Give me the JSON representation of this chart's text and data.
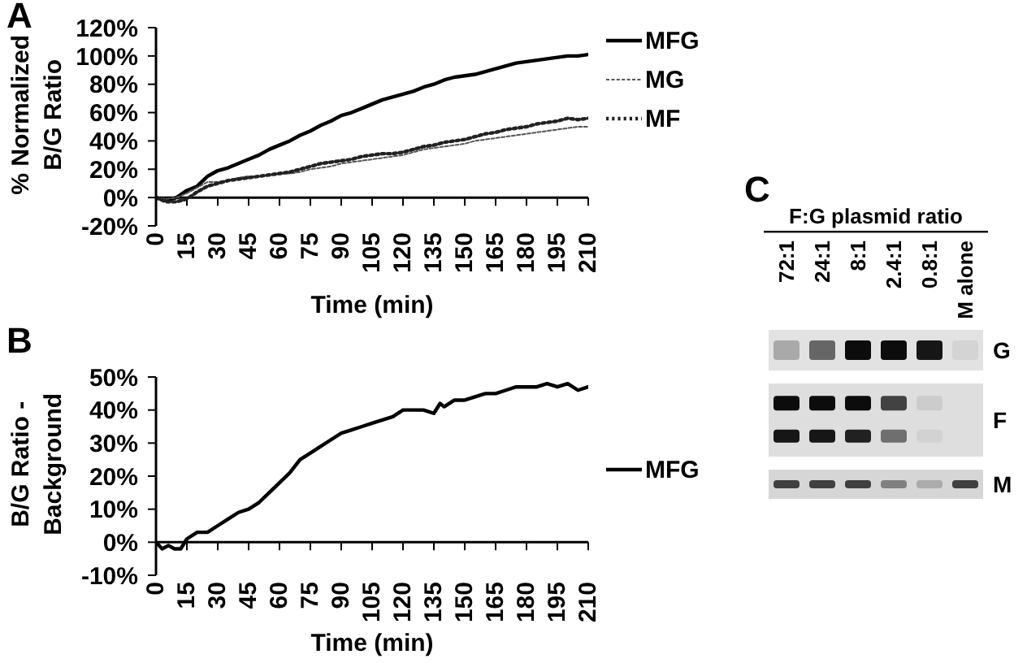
{
  "chart_data": [
    {
      "type": "line",
      "title": "A",
      "xlabel": "Time (min)",
      "ylabel": "% Normalized B/G Ratio",
      "x": [
        0,
        5,
        10,
        15,
        20,
        25,
        30,
        35,
        40,
        45,
        50,
        55,
        60,
        65,
        70,
        75,
        80,
        85,
        90,
        95,
        100,
        105,
        110,
        115,
        120,
        125,
        130,
        135,
        140,
        145,
        150,
        155,
        160,
        165,
        170,
        175,
        180,
        185,
        190,
        195,
        200,
        205,
        210
      ],
      "series": [
        {
          "name": "MFG",
          "color": "#000000",
          "line_style": "solid",
          "values": [
            0,
            -2,
            0,
            5,
            8,
            15,
            19,
            21,
            24,
            27,
            30,
            34,
            37,
            40,
            44,
            47,
            51,
            54,
            58,
            60,
            63,
            66,
            69,
            71,
            73,
            75,
            78,
            80,
            83,
            85,
            86,
            87,
            89,
            91,
            93,
            95,
            96,
            97,
            98,
            99,
            100,
            100,
            101
          ]
        },
        {
          "name": "MG",
          "color": "#555555",
          "line_style": "dashed",
          "values": [
            0,
            -1,
            0,
            3,
            7,
            11,
            11,
            12,
            14,
            15,
            15,
            16,
            17,
            17,
            18,
            20,
            21,
            22,
            24,
            25,
            26,
            27,
            28,
            29,
            30,
            32,
            34,
            35,
            36,
            37,
            38,
            40,
            41,
            42,
            43,
            44,
            45,
            46,
            47,
            48,
            49,
            50,
            50
          ]
        },
        {
          "name": "MF",
          "color": "#222222",
          "line_style": "dotted",
          "values": [
            0,
            -3,
            -3,
            -1,
            4,
            8,
            10,
            12,
            13,
            14,
            15,
            16,
            17,
            18,
            20,
            22,
            24,
            25,
            26,
            27,
            29,
            30,
            31,
            31,
            32,
            34,
            36,
            37,
            39,
            40,
            41,
            43,
            45,
            46,
            48,
            49,
            50,
            52,
            53,
            54,
            56,
            55,
            56
          ]
        }
      ],
      "xlim": [
        0,
        210
      ],
      "xticks": [
        0,
        15,
        30,
        45,
        60,
        75,
        90,
        105,
        120,
        135,
        150,
        165,
        180,
        195,
        210
      ],
      "ylim": [
        -20,
        120
      ],
      "yticks": [
        {
          "value": -20,
          "label": "-20%"
        },
        {
          "value": 0,
          "label": "0%"
        },
        {
          "value": 20,
          "label": "20%"
        },
        {
          "value": 40,
          "label": "40%"
        },
        {
          "value": 60,
          "label": "60%"
        },
        {
          "value": 80,
          "label": "80%"
        },
        {
          "value": 100,
          "label": "100%"
        },
        {
          "value": 120,
          "label": "120%"
        }
      ],
      "legend": "top right"
    },
    {
      "type": "line",
      "title": "B",
      "xlabel": "Time (min)",
      "ylabel": "B/G Ratio - Background",
      "x": [
        0,
        3,
        6,
        9,
        12,
        15,
        20,
        25,
        30,
        35,
        40,
        45,
        50,
        55,
        60,
        65,
        70,
        75,
        80,
        85,
        90,
        95,
        100,
        105,
        110,
        115,
        120,
        125,
        130,
        135,
        138,
        140,
        145,
        150,
        155,
        160,
        165,
        170,
        175,
        180,
        185,
        190,
        195,
        200,
        205,
        210
      ],
      "series": [
        {
          "name": "MFG",
          "color": "#000000",
          "line_style": "solid",
          "values": [
            0,
            -2,
            -1,
            -2,
            -2,
            1,
            3,
            3,
            5,
            7,
            9,
            10,
            12,
            15,
            18,
            21,
            25,
            27,
            29,
            31,
            33,
            34,
            35,
            36,
            37,
            38,
            40,
            40,
            40,
            39,
            42,
            41,
            43,
            43,
            44,
            45,
            45,
            46,
            47,
            47,
            47,
            48,
            47,
            48,
            46,
            47
          ]
        }
      ],
      "xlim": [
        0,
        210
      ],
      "xticks": [
        0,
        15,
        30,
        45,
        60,
        75,
        90,
        105,
        120,
        135,
        150,
        165,
        180,
        195,
        210
      ],
      "ylim": [
        -10,
        50
      ],
      "yticks": [
        {
          "value": -10,
          "label": "-10%"
        },
        {
          "value": 0,
          "label": "0%"
        },
        {
          "value": 10,
          "label": "10%"
        },
        {
          "value": 20,
          "label": "20%"
        },
        {
          "value": 30,
          "label": "30%"
        },
        {
          "value": 40,
          "label": "40%"
        },
        {
          "value": 50,
          "label": "50%"
        }
      ],
      "legend": "right"
    },
    {
      "type": "other",
      "title": "C",
      "xlabel": "F:G plasmid ratio",
      "categories": [
        "72:1",
        "24:1",
        "8:1",
        "2.4:1",
        "0.8:1",
        "M alone"
      ],
      "y2_categories": [
        "G",
        "F",
        "M"
      ]
    }
  ]
}
